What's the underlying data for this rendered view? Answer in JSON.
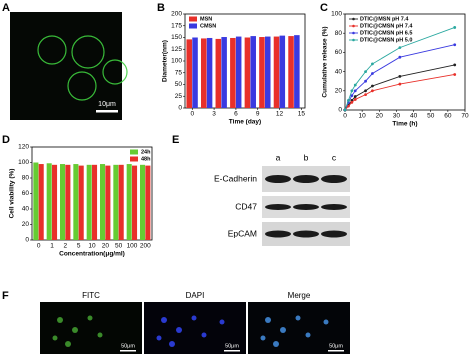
{
  "panel_labels": [
    "A",
    "B",
    "C",
    "D",
    "E",
    "F"
  ],
  "image_a": {
    "scale": "10μm"
  },
  "chart_data": [
    {
      "type": "bar",
      "x": [
        0,
        2,
        4,
        6,
        8,
        10,
        12,
        14
      ],
      "xlim": [
        -1,
        15.5
      ],
      "xticks": [
        0,
        3,
        6,
        9,
        12,
        15
      ],
      "ylim": [
        0,
        200
      ],
      "yticks": [
        0,
        25,
        50,
        75,
        100,
        125,
        150,
        175,
        200
      ],
      "x_label": "Time (day)",
      "y_label": "Diameter(nm)",
      "legend": "upper left",
      "series": [
        {
          "name": "MSN",
          "color": "#e8302a",
          "values": [
            146,
            148,
            147,
            149,
            150,
            151,
            152,
            153
          ]
        },
        {
          "name": "CMSN",
          "color": "#3a3ae0",
          "values": [
            150,
            149,
            151,
            152,
            153,
            152,
            154,
            155
          ]
        }
      ]
    },
    {
      "type": "line",
      "x": [
        0,
        2,
        4,
        6,
        12,
        16,
        32,
        64
      ],
      "xlim": [
        0,
        70
      ],
      "xticks": [
        0,
        10,
        20,
        30,
        40,
        50,
        60,
        70
      ],
      "ylim": [
        0,
        100
      ],
      "yticks": [
        0,
        20,
        40,
        60,
        80,
        100
      ],
      "x_label": "Time (h)",
      "y_label": "Cumulative release (%)",
      "legend": "upper left",
      "series": [
        {
          "name": "DTIC@MSN pH 7.4",
          "color": "#222222",
          "values": [
            0,
            5,
            10,
            14,
            20,
            25,
            35,
            47
          ]
        },
        {
          "name": "DTIC@CMSN pH 7.4",
          "color": "#e8302a",
          "values": [
            0,
            4,
            8,
            11,
            16,
            20,
            27,
            37
          ]
        },
        {
          "name": "DTIC@CMSN pH 6.5",
          "color": "#3a3ae0",
          "values": [
            0,
            8,
            15,
            20,
            30,
            38,
            55,
            68
          ]
        },
        {
          "name": "DTIC@CMSN pH 5.0",
          "color": "#2aa8a0",
          "values": [
            0,
            10,
            20,
            26,
            40,
            48,
            65,
            86
          ]
        }
      ]
    },
    {
      "type": "bar",
      "categories": [
        "0",
        "1",
        "2",
        "5",
        "10",
        "20",
        "50",
        "100",
        "200"
      ],
      "ylim": [
        0,
        120
      ],
      "yticks": [
        0,
        20,
        40,
        60,
        80,
        100,
        120
      ],
      "x_label": "Concentration(μg/ml)",
      "y_label": "Cell viability (%)",
      "legend": "upper right",
      "series": [
        {
          "name": "24h",
          "color": "#66cc33",
          "values": [
            100,
            99,
            98,
            98,
            97,
            98,
            97,
            98,
            97
          ]
        },
        {
          "name": "48h",
          "color": "#e8302a",
          "values": [
            98,
            97,
            97,
            96,
            97,
            96,
            97,
            96,
            96
          ]
        }
      ]
    }
  ],
  "blot": {
    "lanes": [
      "a",
      "b",
      "c"
    ],
    "rows": [
      "E-Cadherin",
      "CD47",
      "EpCAM"
    ]
  },
  "fluorescence": {
    "titles": [
      "FITC",
      "DAPI",
      "Merge"
    ],
    "scale": "50μm"
  }
}
